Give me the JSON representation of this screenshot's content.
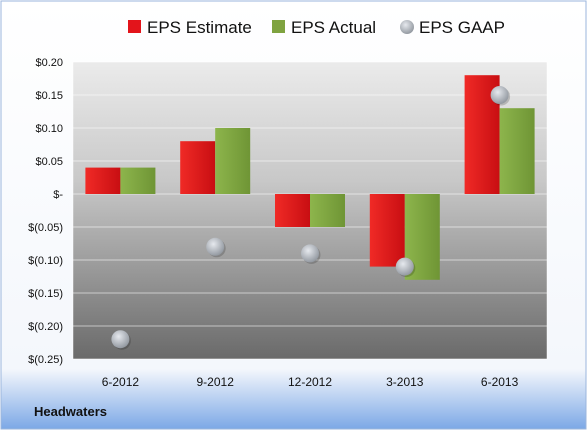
{
  "chart_data": {
    "type": "bar",
    "title": "",
    "company": "Headwaters",
    "categories": [
      "6-2012",
      "9-2012",
      "12-2012",
      "3-2013",
      "6-2013"
    ],
    "series": [
      {
        "name": "EPS Estimate",
        "kind": "bar",
        "color": "#e3141b",
        "values": [
          0.04,
          0.08,
          -0.05,
          -0.11,
          0.18
        ]
      },
      {
        "name": "EPS Actual",
        "kind": "bar",
        "color": "#7fa340",
        "values": [
          0.04,
          0.1,
          -0.05,
          -0.13,
          0.13
        ]
      },
      {
        "name": "EPS GAAP",
        "kind": "marker",
        "color": "#b9bfc8",
        "values": [
          -0.22,
          -0.08,
          -0.09,
          -0.11,
          0.15
        ]
      }
    ],
    "yticks": [
      0.2,
      0.15,
      0.1,
      0.05,
      0,
      -0.05,
      -0.1,
      -0.15,
      -0.2,
      -0.25
    ],
    "ytick_labels": [
      "$0.20",
      "$0.15",
      "$0.10",
      "$0.05",
      "$-",
      "$(0.05)",
      "$(0.10)",
      "$(0.15)",
      "$(0.20)",
      "$(0.25)"
    ],
    "ylim": [
      -0.25,
      0.2
    ],
    "legend_position": "top"
  }
}
